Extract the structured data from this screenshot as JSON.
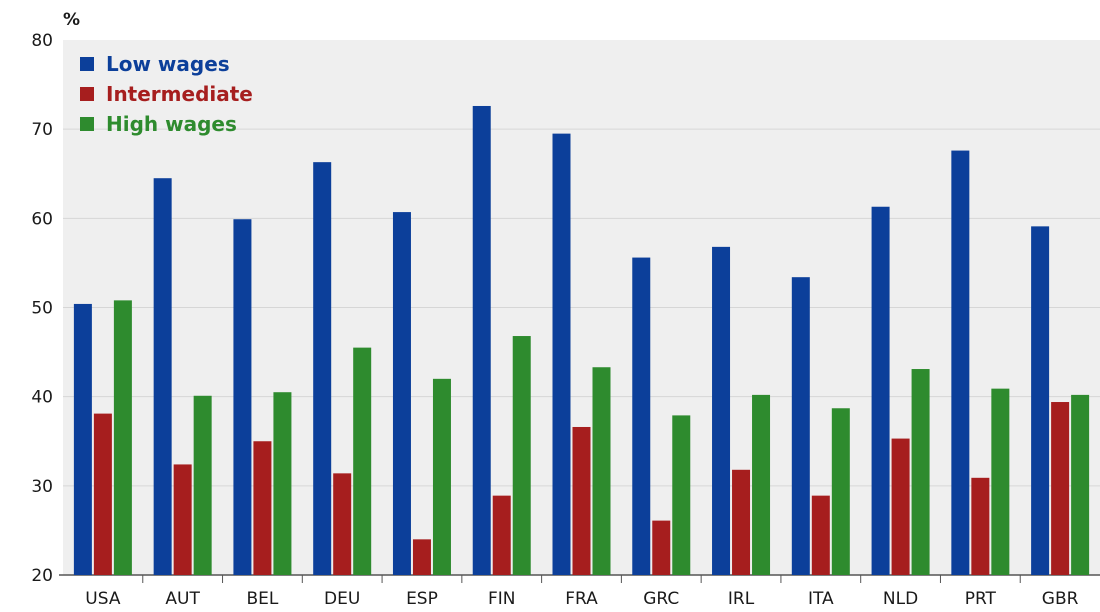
{
  "chart_data": {
    "type": "bar",
    "ylabel": "%",
    "ylim": [
      20,
      80
    ],
    "yticks": [
      20,
      30,
      40,
      50,
      60,
      70,
      80
    ],
    "grid": true,
    "legend": "top-left",
    "categories": [
      "USA",
      "AUT",
      "BEL",
      "DEU",
      "ESP",
      "FIN",
      "FRA",
      "GRC",
      "IRL",
      "ITA",
      "NLD",
      "PRT",
      "GBR"
    ],
    "series": [
      {
        "name": "Low wages",
        "color": "#0c3f9a",
        "values": [
          50.4,
          64.5,
          59.9,
          66.3,
          60.7,
          72.6,
          69.5,
          55.6,
          56.8,
          53.4,
          61.3,
          67.6,
          59.1
        ]
      },
      {
        "name": "Intermediate",
        "color": "#a61e1e",
        "values": [
          38.1,
          32.4,
          35.0,
          31.4,
          24.0,
          28.9,
          36.6,
          26.1,
          31.8,
          28.9,
          35.3,
          30.9,
          39.4
        ]
      },
      {
        "name": "High wages",
        "color": "#2e8b2e",
        "values": [
          50.8,
          40.1,
          40.5,
          45.5,
          42.0,
          46.8,
          43.3,
          37.9,
          40.2,
          38.7,
          43.1,
          40.9,
          40.2
        ]
      }
    ]
  }
}
